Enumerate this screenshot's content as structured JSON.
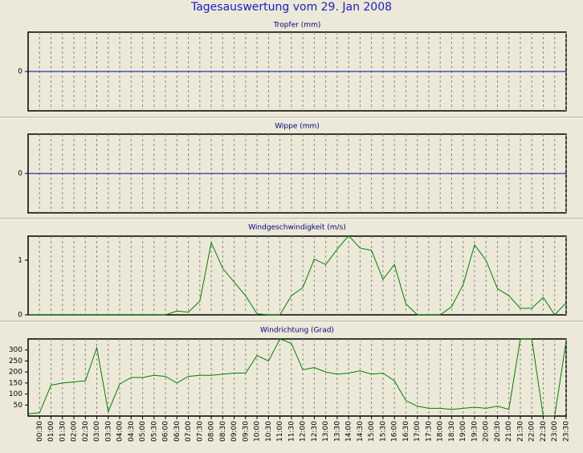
{
  "title": "Tagesauswertung vom 29. Jan 2008",
  "chart_data": [
    {
      "type": "line",
      "title": "Tropfer (mm)",
      "color": "#0000a0",
      "ylim": [
        -1,
        1
      ],
      "yticks": [
        0
      ],
      "values": [
        0,
        0,
        0,
        0,
        0,
        0,
        0,
        0,
        0,
        0,
        0,
        0,
        0,
        0,
        0,
        0,
        0,
        0,
        0,
        0,
        0,
        0,
        0,
        0,
        0,
        0,
        0,
        0,
        0,
        0,
        0,
        0,
        0,
        0,
        0,
        0,
        0,
        0,
        0,
        0,
        0,
        0,
        0,
        0,
        0,
        0,
        0,
        0
      ]
    },
    {
      "type": "line",
      "title": "Wippe (mm)",
      "color": "#0000a0",
      "ylim": [
        -1,
        1
      ],
      "yticks": [
        0
      ],
      "values": [
        0,
        0,
        0,
        0,
        0,
        0,
        0,
        0,
        0,
        0,
        0,
        0,
        0,
        0,
        0,
        0,
        0,
        0,
        0,
        0,
        0,
        0,
        0,
        0,
        0,
        0,
        0,
        0,
        0,
        0,
        0,
        0,
        0,
        0,
        0,
        0,
        0,
        0,
        0,
        0,
        0,
        0,
        0,
        0,
        0,
        0,
        0,
        0
      ]
    },
    {
      "type": "line",
      "title": "Windgeschwindigkeit (m/s)",
      "color": "#008000",
      "ylim": [
        0,
        1.44
      ],
      "yticks": [
        0,
        1
      ],
      "values": [
        0,
        0,
        0,
        0,
        0,
        0,
        0,
        0,
        0,
        0,
        0,
        0,
        0,
        0.07,
        0.05,
        0.25,
        1.32,
        0.85,
        0.6,
        0.35,
        0.02,
        0,
        0,
        0.35,
        0.5,
        1.02,
        0.92,
        1.2,
        1.45,
        1.22,
        1.18,
        0.65,
        0.92,
        0.2,
        0,
        0,
        0,
        0.15,
        0.55,
        1.28,
        1.0,
        0.48,
        0.35,
        0.12,
        0.12,
        0.32,
        0,
        0.22
      ]
    },
    {
      "type": "line",
      "title": "Windrichtung (Grad)",
      "color": "#008000",
      "ylim": [
        0,
        350
      ],
      "yticks": [
        50,
        100,
        150,
        200,
        250,
        300
      ],
      "categories": [
        null,
        "00:30",
        "01:00",
        "01:30",
        "02:00",
        "02:30",
        "03:00",
        "03:30",
        "04:00",
        "04:30",
        "05:00",
        "05:30",
        "06:00",
        "06:30",
        "07:00",
        "07:30",
        "08:00",
        "08:30",
        "09:00",
        "09:30",
        "10:00",
        "10:30",
        "11:00",
        "11:30",
        "12:00",
        "12:30",
        "13:00",
        "13:30",
        "14:00",
        "14:30",
        "15:00",
        "15:30",
        "16:00",
        "16:30",
        "17:00",
        "17:30",
        "18:00",
        "18:30",
        "19:00",
        "19:30",
        "20:00",
        "20:30",
        "21:00",
        "21:30",
        "22:00",
        "22:30",
        "23:00",
        "23:30"
      ],
      "values": [
        10,
        15,
        140,
        150,
        155,
        160,
        310,
        20,
        145,
        175,
        175,
        185,
        180,
        150,
        180,
        185,
        185,
        190,
        195,
        195,
        275,
        250,
        350,
        330,
        210,
        220,
        200,
        190,
        195,
        205,
        190,
        195,
        160,
        70,
        45,
        35,
        35,
        30,
        35,
        40,
        35,
        45,
        30,
        350,
        350,
        0,
        0,
        340
      ]
    }
  ]
}
